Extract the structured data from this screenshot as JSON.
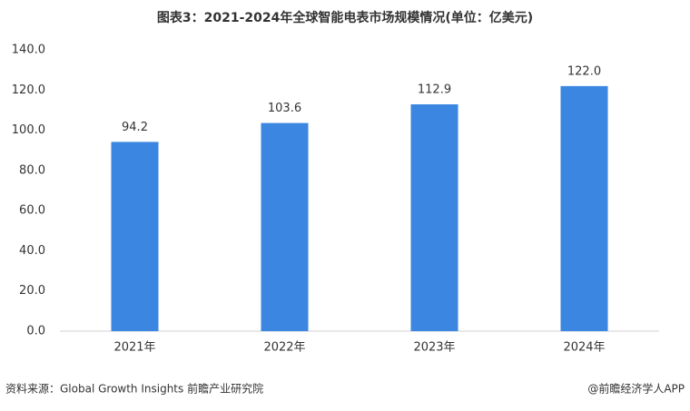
{
  "chart_data": {
    "type": "bar",
    "title": "图表3：2021-2024年全球智能电表市场规模情况(单位：亿美元)",
    "categories": [
      "2021年",
      "2022年",
      "2023年",
      "2024年"
    ],
    "values": [
      94.2,
      103.6,
      112.9,
      122.0
    ],
    "value_labels": [
      "94.2",
      "103.6",
      "112.9",
      "122.0"
    ],
    "color": "#3a86e0",
    "ylim": [
      0,
      140
    ],
    "yticks": [
      {
        "value": 0,
        "label": "0.0"
      },
      {
        "value": 20,
        "label": "20.0"
      },
      {
        "value": 40,
        "label": "40.0"
      },
      {
        "value": 60,
        "label": "60.0"
      },
      {
        "value": 80,
        "label": "80.0"
      },
      {
        "value": 100,
        "label": "100.0"
      },
      {
        "value": 120,
        "label": "120.0"
      },
      {
        "value": 140,
        "label": "140.0"
      }
    ],
    "grid": false,
    "source": "资料来源：Global Growth Insights 前瞻产业研究院",
    "credit": "@前瞻经济学人APP"
  }
}
